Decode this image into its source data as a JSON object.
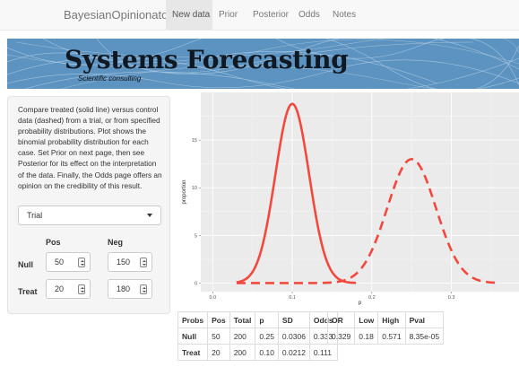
{
  "navbar": {
    "brand": "BayesianOpinionator",
    "tabs": [
      {
        "label": "New data",
        "active": true
      },
      {
        "label": "Prior",
        "active": false
      },
      {
        "label": "Posterior",
        "active": false
      },
      {
        "label": "Odds",
        "active": false
      },
      {
        "label": "Notes",
        "active": false
      }
    ]
  },
  "banner": {
    "title": "Systems Forecasting",
    "subtitle": "Scientific consulting"
  },
  "sidebar": {
    "description": "Compare treated (solid line) versus control data (dashed) from a trial, or from specified probability distributions. Plot shows the binomial probability distribution for each case. Set Prior on next page, then see Posterior for its effect on the interpretation of the data. Finally, the Odds page offers an opinion on the credibility of this result.",
    "select": {
      "value": "Trial"
    },
    "headers": {
      "pos": "Pos",
      "neg": "Neg"
    },
    "rows": [
      {
        "label": "Null",
        "pos": "50",
        "neg": "150"
      },
      {
        "label": "Treat",
        "pos": "20",
        "neg": "180"
      }
    ]
  },
  "chart_data": {
    "type": "line",
    "title": "",
    "xlabel": "p",
    "ylabel": "proportion",
    "xlim": [
      -0.015,
      0.385
    ],
    "ylim": [
      -0.9,
      20
    ],
    "xticks": [
      "0.0",
      "0.1",
      "0.2",
      "0.3"
    ],
    "yticks": [
      "0",
      "5",
      "10",
      "15"
    ],
    "grid": true,
    "series": [
      {
        "style": "solid",
        "color": "#f1493e",
        "peak_x": 0.1,
        "peak_y": 18.8,
        "sd": 0.0212,
        "x_range": [
          0.03,
          0.18
        ]
      },
      {
        "style": "dashed",
        "color": "#f1493e",
        "peak_x": 0.25,
        "peak_y": 13.0,
        "sd": 0.0306,
        "x_range": [
          0.03,
          0.36
        ]
      }
    ]
  },
  "table1": {
    "headers": [
      "Probs",
      "Pos",
      "Total",
      "p",
      "SD",
      "Odds"
    ],
    "rows": [
      [
        "Null",
        "50",
        "200",
        "0.25",
        "0.0306",
        "0.333"
      ],
      [
        "Treat",
        "20",
        "200",
        "0.10",
        "0.0212",
        "0.111"
      ]
    ]
  },
  "table2": {
    "headers": [
      "OR",
      "Low",
      "High",
      "Pval"
    ],
    "rows": [
      [
        "0.329",
        "0.18",
        "0.571",
        "8.35e-05"
      ]
    ]
  }
}
